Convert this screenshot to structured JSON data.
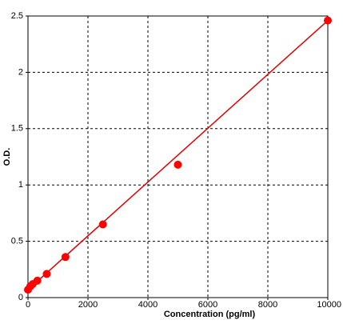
{
  "chart_data": {
    "type": "scatter",
    "x_label": "Concentration (pg/ml)",
    "y_label": "O.D.",
    "x": [
      0,
      78,
      156,
      312,
      625,
      1250,
      2500,
      5000,
      10000
    ],
    "series": [
      {
        "color": "#ff0000",
        "values": [
          0.07,
          0.1,
          0.12,
          0.15,
          0.21,
          0.36,
          0.65,
          1.18,
          2.46
        ]
      }
    ],
    "fit": {
      "color": "#e00000",
      "x": [
        0,
        10000
      ],
      "values": [
        0.07,
        2.46
      ]
    },
    "xlim": [
      0,
      10000
    ],
    "xticks": [
      0,
      2000,
      4000,
      6000,
      8000,
      10000
    ],
    "ylim": [
      0,
      2.5
    ],
    "yticks": [
      0,
      0.5,
      1,
      1.5,
      2,
      2.5
    ],
    "grid": true
  }
}
